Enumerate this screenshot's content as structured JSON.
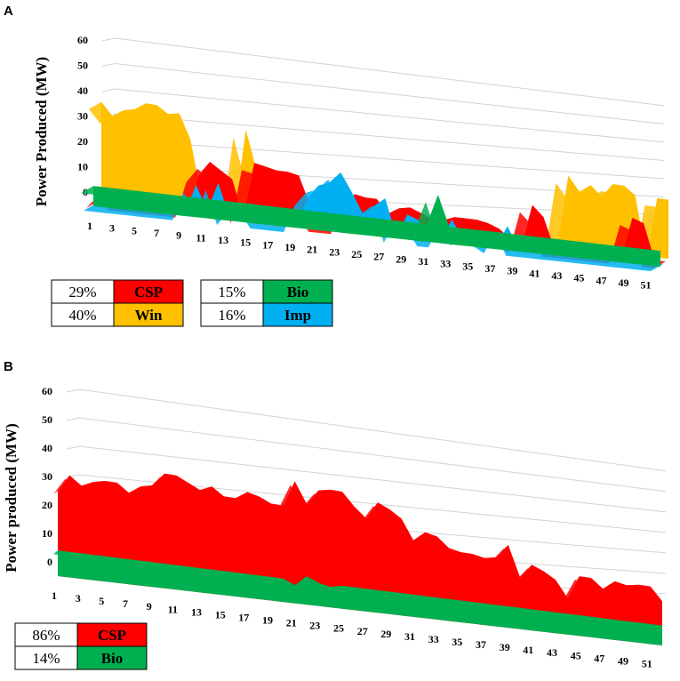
{
  "chart_data": [
    {
      "panel": "A",
      "type": "area",
      "style": "3d-stacked-ribbons",
      "ylabel": "Power Produced  (MW)",
      "ylim": [
        0,
        60
      ],
      "yticks": [
        "0",
        "10",
        "20",
        "30",
        "40",
        "50",
        "60"
      ],
      "x": [
        1,
        2,
        3,
        4,
        5,
        6,
        7,
        8,
        9,
        10,
        11,
        12,
        13,
        14,
        15,
        16,
        17,
        18,
        19,
        20,
        21,
        22,
        23,
        24,
        25,
        26,
        27,
        28,
        29,
        30,
        31,
        32,
        33,
        34,
        35,
        36,
        37,
        38,
        39,
        40,
        41,
        42,
        43,
        44,
        45,
        46,
        47,
        48,
        49,
        50,
        51,
        52
      ],
      "xticks": [
        "1",
        "3",
        "5",
        "7",
        "9",
        "11",
        "13",
        "15",
        "17",
        "19",
        "21",
        "23",
        "25",
        "27",
        "29",
        "31",
        "33",
        "35",
        "37",
        "39",
        "41",
        "43",
        "45",
        "47",
        "49",
        "51"
      ],
      "series": [
        {
          "name": "Win",
          "percent": "40%",
          "color": "#ffc000",
          "values": [
            38,
            33,
            36,
            37,
            40,
            40,
            37,
            38,
            28,
            5,
            0,
            8,
            0,
            35,
            18,
            0,
            0,
            0,
            0,
            0,
            0,
            0,
            0,
            0,
            0,
            0,
            0,
            0,
            8,
            0,
            0,
            0,
            0,
            0,
            0,
            0,
            0,
            0,
            0,
            0,
            0,
            0,
            35,
            28,
            32,
            27,
            34,
            34,
            30,
            0,
            30,
            30
          ]
        },
        {
          "name": "CSP",
          "percent": "29%",
          "color": "#ff0000",
          "values": [
            0,
            5,
            0,
            0,
            0,
            0,
            0,
            0,
            0,
            15,
            21,
            18,
            15,
            0,
            23,
            22,
            21,
            21,
            20,
            8,
            0,
            0,
            0,
            15,
            14,
            14,
            8,
            11,
            12,
            10,
            8,
            8,
            10,
            10,
            10,
            9,
            7,
            3,
            0,
            20,
            15,
            0,
            0,
            0,
            0,
            0,
            0,
            0,
            20,
            18,
            0,
            0
          ]
        },
        {
          "name": "Imp",
          "percent": "16%",
          "color": "#00b0f0",
          "values": [
            0,
            0,
            0,
            0,
            0,
            0,
            0,
            0,
            0,
            12,
            2,
            14,
            0,
            6,
            7,
            0,
            0,
            0,
            0,
            12,
            18,
            20,
            25,
            17,
            8,
            12,
            16,
            0,
            10,
            8,
            0,
            0,
            10,
            2,
            6,
            3,
            0,
            10,
            0,
            0,
            0,
            0,
            0,
            0,
            0,
            0,
            0,
            0,
            0,
            0,
            0,
            0
          ]
        },
        {
          "name": "Bio",
          "percent": "15%",
          "color": "#00b050",
          "values": [
            8,
            8,
            8,
            8,
            8,
            8,
            8,
            8,
            8,
            8,
            8,
            8,
            8,
            8,
            8,
            8,
            8,
            8,
            8,
            8,
            8,
            8,
            8,
            8,
            8,
            8,
            8,
            8,
            8,
            8,
            8,
            22,
            8,
            8,
            8,
            8,
            8,
            8,
            8,
            8,
            8,
            8,
            8,
            8,
            8,
            8,
            8,
            8,
            8,
            8,
            8,
            8
          ]
        }
      ]
    },
    {
      "panel": "B",
      "type": "area",
      "style": "3d-stacked-ribbons",
      "ylabel": "Power produced (MW)",
      "ylim": [
        0,
        60
      ],
      "yticks": [
        "0",
        "10",
        "20",
        "30",
        "40",
        "50",
        "60"
      ],
      "x": [
        1,
        2,
        3,
        4,
        5,
        6,
        7,
        8,
        9,
        10,
        11,
        12,
        13,
        14,
        15,
        16,
        17,
        18,
        19,
        20,
        21,
        22,
        23,
        24,
        25,
        26,
        27,
        28,
        29,
        30,
        31,
        32,
        33,
        34,
        35,
        36,
        37,
        38,
        39,
        40,
        41,
        42,
        43,
        44,
        45,
        46,
        47,
        48,
        49,
        50,
        51,
        52
      ],
      "xticks": [
        "1",
        "3",
        "5",
        "7",
        "9",
        "11",
        "13",
        "15",
        "17",
        "19",
        "21",
        "23",
        "25",
        "27",
        "29",
        "31",
        "33",
        "35",
        "37",
        "39",
        "41",
        "43",
        "45",
        "47",
        "49",
        "51"
      ],
      "series": [
        {
          "name": "CSP",
          "percent": "86%",
          "color": "#ff0000",
          "values": [
            30,
            36,
            33,
            35,
            36,
            36,
            33,
            36,
            37,
            42,
            42,
            40,
            38,
            40,
            37,
            37,
            40,
            39,
            37,
            37,
            47,
            39,
            45,
            46,
            46,
            41,
            37,
            44,
            42,
            39,
            31,
            35,
            34,
            30,
            29,
            29,
            28,
            29,
            35,
            22,
            28,
            26,
            23,
            16,
            26,
            26,
            22,
            26,
            25,
            26,
            26,
            20
          ]
        },
        {
          "name": "Bio",
          "percent": "14%",
          "color": "#00b050",
          "values": [
            9,
            9,
            9,
            9,
            9,
            9,
            9,
            9,
            9,
            9,
            9,
            9,
            9,
            9,
            9,
            9,
            9,
            9,
            9,
            9,
            7,
            11,
            9,
            8,
            9,
            9,
            9,
            9,
            9,
            9,
            9,
            9,
            9,
            9,
            9,
            9,
            9,
            9,
            9,
            9,
            9,
            9,
            9,
            9,
            9,
            9,
            9,
            9,
            9,
            9,
            9,
            9
          ]
        }
      ]
    }
  ]
}
